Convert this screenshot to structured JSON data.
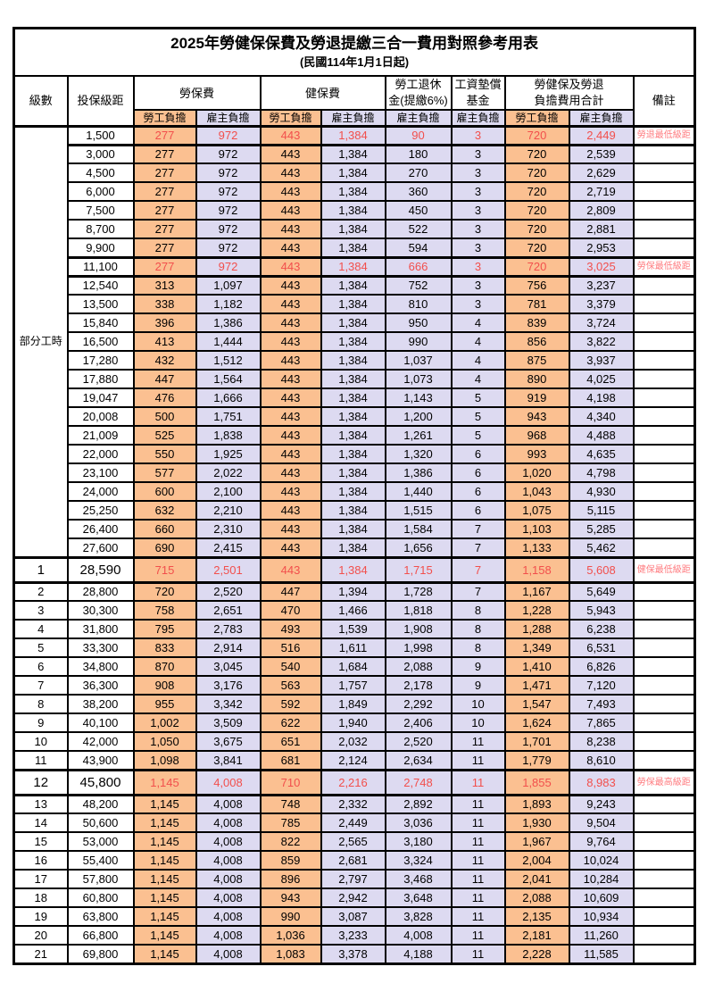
{
  "title": "2025年勞健保保費及勞退提繳三合一費用對照參考用表",
  "subtitle": "(民國114年1月1日起)",
  "columns": {
    "level": "級數",
    "salary_bracket": "投保級距",
    "labor_insurance": "勞保費",
    "health_insurance": "健保費",
    "pension_line1": "勞工退休",
    "pension_line2": "金(提繳6%)",
    "wage_fund_line1": "工資墊償",
    "wage_fund_line2": "基金",
    "total_line1": "勞健保及勞退",
    "total_line2": "負擔費用合計",
    "remark": "備註",
    "employee_share": "勞工負擔",
    "employer_share": "雇主負擔"
  },
  "group_label": "部分工時",
  "colors": {
    "employee_bg": "#FBC091",
    "employer_bg": "#DDDAF1",
    "red_value": "#F24F4C",
    "red_remark": "#FF7C80",
    "border": "#000000"
  },
  "rows": [
    {
      "level": "",
      "salary": "1,500",
      "values": [
        "277",
        "972",
        "443",
        "1,384",
        "90",
        "3",
        "720",
        "2,449"
      ],
      "remark": "勞退最低級距",
      "red": true,
      "big": false
    },
    {
      "level": "",
      "salary": "3,000",
      "values": [
        "277",
        "972",
        "443",
        "1,384",
        "180",
        "3",
        "720",
        "2,539"
      ],
      "remark": "",
      "red": false,
      "big": false
    },
    {
      "level": "",
      "salary": "4,500",
      "values": [
        "277",
        "972",
        "443",
        "1,384",
        "270",
        "3",
        "720",
        "2,629"
      ],
      "remark": "",
      "red": false,
      "big": false
    },
    {
      "level": "",
      "salary": "6,000",
      "values": [
        "277",
        "972",
        "443",
        "1,384",
        "360",
        "3",
        "720",
        "2,719"
      ],
      "remark": "",
      "red": false,
      "big": false
    },
    {
      "level": "",
      "salary": "7,500",
      "values": [
        "277",
        "972",
        "443",
        "1,384",
        "450",
        "3",
        "720",
        "2,809"
      ],
      "remark": "",
      "red": false,
      "big": false
    },
    {
      "level": "",
      "salary": "8,700",
      "values": [
        "277",
        "972",
        "443",
        "1,384",
        "522",
        "3",
        "720",
        "2,881"
      ],
      "remark": "",
      "red": false,
      "big": false
    },
    {
      "level": "",
      "salary": "9,900",
      "values": [
        "277",
        "972",
        "443",
        "1,384",
        "594",
        "3",
        "720",
        "2,953"
      ],
      "remark": "",
      "red": false,
      "big": false
    },
    {
      "level": "",
      "salary": "11,100",
      "values": [
        "277",
        "972",
        "443",
        "1,384",
        "666",
        "3",
        "720",
        "3,025"
      ],
      "remark": "勞保最低級距",
      "red": true,
      "big": false
    },
    {
      "level": "",
      "salary": "12,540",
      "values": [
        "313",
        "1,097",
        "443",
        "1,384",
        "752",
        "3",
        "756",
        "3,237"
      ],
      "remark": "",
      "red": false,
      "big": false
    },
    {
      "level": "",
      "salary": "13,500",
      "values": [
        "338",
        "1,182",
        "443",
        "1,384",
        "810",
        "3",
        "781",
        "3,379"
      ],
      "remark": "",
      "red": false,
      "big": false
    },
    {
      "level": "",
      "salary": "15,840",
      "values": [
        "396",
        "1,386",
        "443",
        "1,384",
        "950",
        "4",
        "839",
        "3,724"
      ],
      "remark": "",
      "red": false,
      "big": false
    },
    {
      "level": "",
      "salary": "16,500",
      "values": [
        "413",
        "1,444",
        "443",
        "1,384",
        "990",
        "4",
        "856",
        "3,822"
      ],
      "remark": "",
      "red": false,
      "big": false
    },
    {
      "level": "",
      "salary": "17,280",
      "values": [
        "432",
        "1,512",
        "443",
        "1,384",
        "1,037",
        "4",
        "875",
        "3,937"
      ],
      "remark": "",
      "red": false,
      "big": false
    },
    {
      "level": "",
      "salary": "17,880",
      "values": [
        "447",
        "1,564",
        "443",
        "1,384",
        "1,073",
        "4",
        "890",
        "4,025"
      ],
      "remark": "",
      "red": false,
      "big": false
    },
    {
      "level": "",
      "salary": "19,047",
      "values": [
        "476",
        "1,666",
        "443",
        "1,384",
        "1,143",
        "5",
        "919",
        "4,198"
      ],
      "remark": "",
      "red": false,
      "big": false
    },
    {
      "level": "",
      "salary": "20,008",
      "values": [
        "500",
        "1,751",
        "443",
        "1,384",
        "1,200",
        "5",
        "943",
        "4,340"
      ],
      "remark": "",
      "red": false,
      "big": false
    },
    {
      "level": "",
      "salary": "21,009",
      "values": [
        "525",
        "1,838",
        "443",
        "1,384",
        "1,261",
        "5",
        "968",
        "4,488"
      ],
      "remark": "",
      "red": false,
      "big": false
    },
    {
      "level": "",
      "salary": "22,000",
      "values": [
        "550",
        "1,925",
        "443",
        "1,384",
        "1,320",
        "6",
        "993",
        "4,635"
      ],
      "remark": "",
      "red": false,
      "big": false
    },
    {
      "level": "",
      "salary": "23,100",
      "values": [
        "577",
        "2,022",
        "443",
        "1,384",
        "1,386",
        "6",
        "1,020",
        "4,798"
      ],
      "remark": "",
      "red": false,
      "big": false
    },
    {
      "level": "",
      "salary": "24,000",
      "values": [
        "600",
        "2,100",
        "443",
        "1,384",
        "1,440",
        "6",
        "1,043",
        "4,930"
      ],
      "remark": "",
      "red": false,
      "big": false
    },
    {
      "level": "",
      "salary": "25,250",
      "values": [
        "632",
        "2,210",
        "443",
        "1,384",
        "1,515",
        "6",
        "1,075",
        "5,115"
      ],
      "remark": "",
      "red": false,
      "big": false
    },
    {
      "level": "",
      "salary": "26,400",
      "values": [
        "660",
        "2,310",
        "443",
        "1,384",
        "1,584",
        "7",
        "1,103",
        "5,285"
      ],
      "remark": "",
      "red": false,
      "big": false
    },
    {
      "level": "",
      "salary": "27,600",
      "values": [
        "690",
        "2,415",
        "443",
        "1,384",
        "1,656",
        "7",
        "1,133",
        "5,462"
      ],
      "remark": "",
      "red": false,
      "big": false
    },
    {
      "level": "1",
      "salary": "28,590",
      "values": [
        "715",
        "2,501",
        "443",
        "1,384",
        "1,715",
        "7",
        "1,158",
        "5,608"
      ],
      "remark": "健保最低級距",
      "red": true,
      "big": true
    },
    {
      "level": "2",
      "salary": "28,800",
      "values": [
        "720",
        "2,520",
        "447",
        "1,394",
        "1,728",
        "7",
        "1,167",
        "5,649"
      ],
      "remark": "",
      "red": false,
      "big": false
    },
    {
      "level": "3",
      "salary": "30,300",
      "values": [
        "758",
        "2,651",
        "470",
        "1,466",
        "1,818",
        "8",
        "1,228",
        "5,943"
      ],
      "remark": "",
      "red": false,
      "big": false
    },
    {
      "level": "4",
      "salary": "31,800",
      "values": [
        "795",
        "2,783",
        "493",
        "1,539",
        "1,908",
        "8",
        "1,288",
        "6,238"
      ],
      "remark": "",
      "red": false,
      "big": false
    },
    {
      "level": "5",
      "salary": "33,300",
      "values": [
        "833",
        "2,914",
        "516",
        "1,611",
        "1,998",
        "8",
        "1,349",
        "6,531"
      ],
      "remark": "",
      "red": false,
      "big": false
    },
    {
      "level": "6",
      "salary": "34,800",
      "values": [
        "870",
        "3,045",
        "540",
        "1,684",
        "2,088",
        "9",
        "1,410",
        "6,826"
      ],
      "remark": "",
      "red": false,
      "big": false
    },
    {
      "level": "7",
      "salary": "36,300",
      "values": [
        "908",
        "3,176",
        "563",
        "1,757",
        "2,178",
        "9",
        "1,471",
        "7,120"
      ],
      "remark": "",
      "red": false,
      "big": false
    },
    {
      "level": "8",
      "salary": "38,200",
      "values": [
        "955",
        "3,342",
        "592",
        "1,849",
        "2,292",
        "10",
        "1,547",
        "7,493"
      ],
      "remark": "",
      "red": false,
      "big": false
    },
    {
      "level": "9",
      "salary": "40,100",
      "values": [
        "1,002",
        "3,509",
        "622",
        "1,940",
        "2,406",
        "10",
        "1,624",
        "7,865"
      ],
      "remark": "",
      "red": false,
      "big": false
    },
    {
      "level": "10",
      "salary": "42,000",
      "values": [
        "1,050",
        "3,675",
        "651",
        "2,032",
        "2,520",
        "11",
        "1,701",
        "8,238"
      ],
      "remark": "",
      "red": false,
      "big": false
    },
    {
      "level": "11",
      "salary": "43,900",
      "values": [
        "1,098",
        "3,841",
        "681",
        "2,124",
        "2,634",
        "11",
        "1,779",
        "8,610"
      ],
      "remark": "",
      "red": false,
      "big": false
    },
    {
      "level": "12",
      "salary": "45,800",
      "values": [
        "1,145",
        "4,008",
        "710",
        "2,216",
        "2,748",
        "11",
        "1,855",
        "8,983"
      ],
      "remark": "勞保最高級距",
      "red": true,
      "big": true
    },
    {
      "level": "13",
      "salary": "48,200",
      "values": [
        "1,145",
        "4,008",
        "748",
        "2,332",
        "2,892",
        "11",
        "1,893",
        "9,243"
      ],
      "remark": "",
      "red": false,
      "big": false
    },
    {
      "level": "14",
      "salary": "50,600",
      "values": [
        "1,145",
        "4,008",
        "785",
        "2,449",
        "3,036",
        "11",
        "1,930",
        "9,504"
      ],
      "remark": "",
      "red": false,
      "big": false
    },
    {
      "level": "15",
      "salary": "53,000",
      "values": [
        "1,145",
        "4,008",
        "822",
        "2,565",
        "3,180",
        "11",
        "1,967",
        "9,764"
      ],
      "remark": "",
      "red": false,
      "big": false
    },
    {
      "level": "16",
      "salary": "55,400",
      "values": [
        "1,145",
        "4,008",
        "859",
        "2,681",
        "3,324",
        "11",
        "2,004",
        "10,024"
      ],
      "remark": "",
      "red": false,
      "big": false
    },
    {
      "level": "17",
      "salary": "57,800",
      "values": [
        "1,145",
        "4,008",
        "896",
        "2,797",
        "3,468",
        "11",
        "2,041",
        "10,284"
      ],
      "remark": "",
      "red": false,
      "big": false
    },
    {
      "level": "18",
      "salary": "60,800",
      "values": [
        "1,145",
        "4,008",
        "943",
        "2,942",
        "3,648",
        "11",
        "2,088",
        "10,609"
      ],
      "remark": "",
      "red": false,
      "big": false
    },
    {
      "level": "19",
      "salary": "63,800",
      "values": [
        "1,145",
        "4,008",
        "990",
        "3,087",
        "3,828",
        "11",
        "2,135",
        "10,934"
      ],
      "remark": "",
      "red": false,
      "big": false
    },
    {
      "level": "20",
      "salary": "66,800",
      "values": [
        "1,145",
        "4,008",
        "1,036",
        "3,233",
        "4,008",
        "11",
        "2,181",
        "11,260"
      ],
      "remark": "",
      "red": false,
      "big": false
    },
    {
      "level": "21",
      "salary": "69,800",
      "values": [
        "1,145",
        "4,008",
        "1,083",
        "3,378",
        "4,188",
        "11",
        "2,228",
        "11,585"
      ],
      "remark": "",
      "red": false,
      "big": false
    }
  ]
}
